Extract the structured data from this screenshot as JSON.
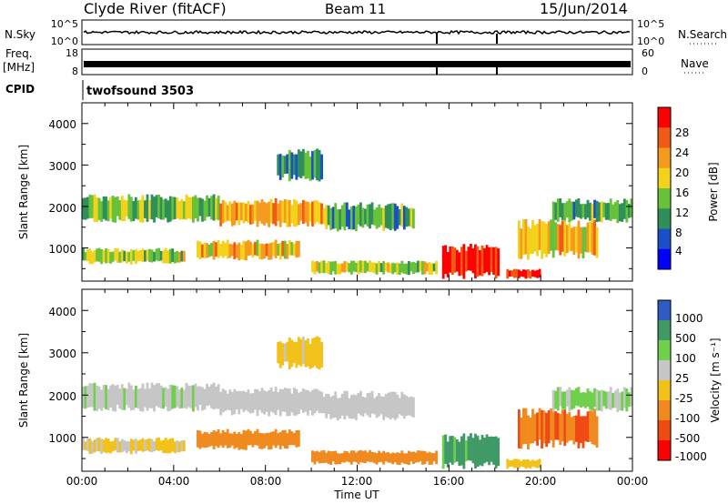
{
  "header": {
    "station": "Clyde River (fitACF)",
    "beam": "Beam 11",
    "date": "15/Jun/2014"
  },
  "nsky_panel": {
    "left_label": "N.Sky",
    "right_label": "N.Search",
    "left_ticks": [
      "10^5",
      "10^0"
    ],
    "right_ticks": [
      "10^5",
      "10^0"
    ]
  },
  "freq_panel": {
    "left_label": "Freq.",
    "left_unit": "[MHz]",
    "right_label": "Nave",
    "left_ticks": [
      "18",
      "8"
    ],
    "right_ticks": [
      "60",
      "0"
    ]
  },
  "cpid": {
    "label": "CPID",
    "value": "twofsound 3503"
  },
  "power_panel": {
    "ylabel": "Slant Range [km]",
    "yticks": [
      "4000",
      "3000",
      "2000",
      "1000"
    ],
    "colorbar_label": "Power [dB]",
    "colorbar_ticks": [
      "28",
      "24",
      "20",
      "16",
      "12",
      "8",
      "4"
    ],
    "colors": [
      "#0000ff",
      "#1a4fc8",
      "#2f8f5a",
      "#67c23a",
      "#f2d21b",
      "#f59a1e",
      "#f05a14",
      "#ff0000"
    ]
  },
  "velocity_panel": {
    "ylabel": "Slant Range [km]",
    "yticks": [
      "4000",
      "3000",
      "2000",
      "1000"
    ],
    "colorbar_label": "Velocity [m s⁻¹]",
    "colorbar_ticks": [
      "1000",
      "500",
      "100",
      "25",
      "-25",
      "-100",
      "-500",
      "-1000"
    ],
    "colors": [
      "#2f5cc2",
      "#3f9a66",
      "#6fd04c",
      "#c6c6c6",
      "#f2c21b",
      "#f08a1e",
      "#f04a14",
      "#ff0000"
    ]
  },
  "time_axis": {
    "label": "Time UT",
    "ticks": [
      "00:00",
      "04:00",
      "08:00",
      "12:00",
      "16:00",
      "20:00",
      "00:00"
    ]
  },
  "chart_data": {
    "type": "heatmap",
    "title": "Clyde River (fitACF) Beam 11 15/Jun/2014",
    "xlabel": "Time UT",
    "ylabel": "Slant Range [km]",
    "xlim": [
      0,
      24
    ],
    "ylim": [
      200,
      4500
    ],
    "power_range_db": [
      0,
      32
    ],
    "velocity_range_ms": [
      -1000,
      1000
    ],
    "echo_regions": [
      {
        "t": [
          0.0,
          6.0
        ],
        "range": [
          1600,
          2300
        ],
        "power": 14,
        "velocity": 10
      },
      {
        "t": [
          6.0,
          10.5
        ],
        "range": [
          1500,
          2200
        ],
        "power": 22,
        "velocity": 0
      },
      {
        "t": [
          10.5,
          14.5
        ],
        "range": [
          1400,
          2100
        ],
        "power": 12,
        "velocity": 5
      },
      {
        "t": [
          0.0,
          4.5
        ],
        "range": [
          600,
          1000
        ],
        "power": 16,
        "velocity": -30
      },
      {
        "t": [
          5.0,
          9.5
        ],
        "range": [
          700,
          1200
        ],
        "power": 20,
        "velocity": -250
      },
      {
        "t": [
          10.0,
          15.5
        ],
        "range": [
          350,
          700
        ],
        "power": 16,
        "velocity": -200
      },
      {
        "t": [
          15.7,
          18.2
        ],
        "range": [
          250,
          1100
        ],
        "power": 30,
        "velocity": 120
      },
      {
        "t": [
          18.5,
          20.0
        ],
        "range": [
          250,
          500
        ],
        "power": 28,
        "velocity": -60
      },
      {
        "t": [
          19.0,
          22.5
        ],
        "range": [
          700,
          1700
        ],
        "power": 20,
        "velocity": -500
      },
      {
        "t": [
          20.5,
          24.0
        ],
        "range": [
          1600,
          2200
        ],
        "power": 12,
        "velocity": 30
      },
      {
        "t": [
          8.5,
          10.5
        ],
        "range": [
          2600,
          3400
        ],
        "power": 10,
        "velocity": -40
      }
    ]
  }
}
